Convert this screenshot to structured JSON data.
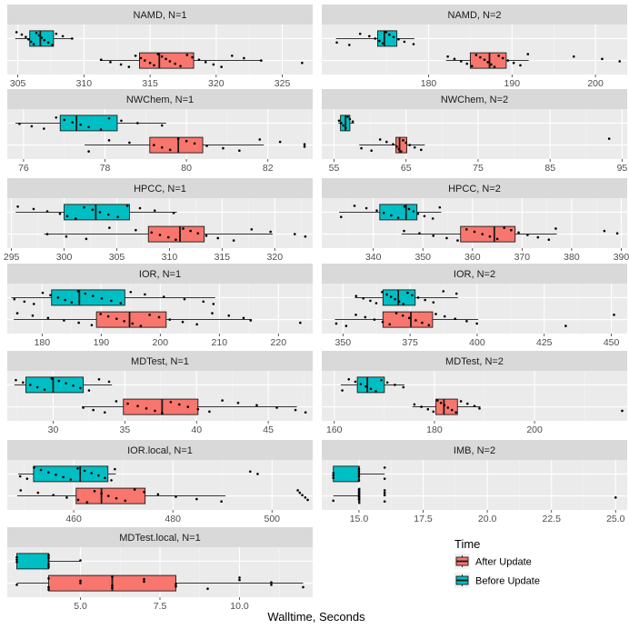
{
  "chart_data": {
    "type": "boxplot",
    "xlabel": "Walltime, Seconds",
    "legend": {
      "title": "Time",
      "placement": "right-bottom",
      "entries": [
        {
          "label": "After Update",
          "color": "#F8766D"
        },
        {
          "label": "Before Update",
          "color": "#00BFC4"
        }
      ]
    },
    "panels": [
      {
        "title": "NAMD, N=1",
        "xlim": [
          304.2,
          327.3
        ],
        "ticks": [
          305,
          310,
          315,
          320,
          325
        ],
        "tick_labels": [
          "305",
          "310",
          "315",
          "320",
          "325"
        ],
        "series": [
          {
            "group": "Before Update",
            "whisker_low": 304.8,
            "q1": 305.9,
            "median": 306.7,
            "q3": 307.7,
            "whisker_high": 309.2,
            "points": [
              304.9,
              305.3,
              305.6,
              305.8,
              306.0,
              306.2,
              306.4,
              306.6,
              306.8,
              307.0,
              307.3,
              307.6,
              307.9,
              308.4,
              309.1
            ]
          },
          {
            "group": "After Update",
            "whisker_low": 311.2,
            "q1": 314.2,
            "median": 315.7,
            "q3": 318.3,
            "whisker_high": 323.5,
            "points": [
              311.3,
              312.0,
              312.8,
              313.4,
              313.9,
              314.3,
              314.6,
              315.0,
              315.3,
              315.6,
              315.9,
              316.2,
              316.5,
              316.9,
              317.3,
              317.8,
              318.2,
              318.7,
              319.2,
              319.8,
              320.4,
              321.2,
              322.1,
              323.4,
              326.5
            ]
          }
        ]
      },
      {
        "title": "NAMD, N=2",
        "xlim": [
          167.2,
          203.8
        ],
        "ticks": [
          180,
          190,
          200
        ],
        "tick_labels": [
          "180",
          "190",
          "200"
        ],
        "series": [
          {
            "group": "Before Update",
            "whisker_low": 168.9,
            "q1": 173.9,
            "median": 174.7,
            "q3": 176.2,
            "whisker_high": 178.3,
            "points": [
              169.0,
              170.5,
              171.8,
              172.9,
              173.6,
              174.1,
              174.5,
              174.9,
              175.3,
              175.8,
              176.4,
              177.1,
              178.2
            ]
          },
          {
            "group": "After Update",
            "whisker_low": 182.1,
            "q1": 185.0,
            "median": 187.3,
            "q3": 189.3,
            "whisker_high": 192.0,
            "points": [
              182.3,
              183.1,
              183.9,
              184.6,
              185.2,
              185.7,
              186.2,
              186.7,
              187.1,
              187.5,
              187.9,
              188.4,
              188.9,
              189.5,
              190.2,
              191.0,
              191.9,
              197.4,
              200.8,
              202.9
            ]
          }
        ]
      },
      {
        "title": "NWChem, N=1",
        "xlim": [
          75.6,
          83.1
        ],
        "ticks": [
          76,
          78,
          80,
          82
        ],
        "tick_labels": [
          "76",
          "78",
          "80",
          "82"
        ],
        "series": [
          {
            "group": "Before Update",
            "whisker_low": 75.8,
            "q1": 76.9,
            "median": 77.3,
            "q3": 78.3,
            "whisker_high": 79.5,
            "points": [
              75.9,
              76.2,
              76.5,
              76.8,
              77.0,
              77.2,
              77.4,
              77.6,
              77.9,
              78.1,
              78.4,
              78.8,
              79.4
            ]
          },
          {
            "group": "After Update",
            "whisker_low": 77.5,
            "q1": 79.1,
            "median": 79.8,
            "q3": 80.4,
            "whisker_high": 81.9,
            "points": [
              77.6,
              78.1,
              78.6,
              79.2,
              79.4,
              79.6,
              79.8,
              80.0,
              80.2,
              80.5,
              80.9,
              81.3,
              81.8,
              82.3,
              82.9,
              82.9
            ]
          }
        ]
      },
      {
        "title": "NWChem, N=2",
        "xlim": [
          53.3,
          95.7
        ],
        "ticks": [
          55,
          65,
          75,
          85,
          95
        ],
        "tick_labels": [
          "55",
          "65",
          "75",
          "85",
          "95"
        ],
        "series": [
          {
            "group": "Before Update",
            "whisker_low": 55.6,
            "q1": 55.9,
            "median": 56.6,
            "q3": 57.2,
            "whisker_high": 57.8,
            "points": [
              55.7,
              56.0,
              56.3,
              56.6,
              56.9,
              57.2,
              57.6
            ]
          },
          {
            "group": "After Update",
            "whisker_low": 58.5,
            "q1": 63.6,
            "median": 64.1,
            "q3": 65.1,
            "whisker_high": 67.6,
            "points": [
              58.8,
              60.2,
              61.4,
              62.3,
              63.2,
              63.7,
              64.0,
              64.3,
              64.6,
              65.0,
              65.5,
              66.2,
              67.1,
              93.2
            ]
          }
        ]
      },
      {
        "title": "HPCC, N=1",
        "xlim": [
          294.6,
          323.6
        ],
        "ticks": [
          295,
          300,
          305,
          310,
          315,
          320
        ],
        "tick_labels": [
          "295",
          "300",
          "305",
          "310",
          "315",
          "320"
        ],
        "series": [
          {
            "group": "Before Update",
            "whisker_low": 295.4,
            "q1": 300.0,
            "median": 303.0,
            "q3": 306.2,
            "whisker_high": 310.7,
            "points": [
              295.6,
              297.1,
              298.4,
              299.6,
              300.3,
              301.1,
              301.9,
              302.7,
              303.4,
              304.2,
              305.1,
              306.0,
              307.2,
              308.6,
              310.4
            ]
          },
          {
            "group": "After Update",
            "whisker_low": 298.1,
            "q1": 308.0,
            "median": 311.0,
            "q3": 313.3,
            "whisker_high": 319.8,
            "points": [
              298.4,
              300.2,
              302.1,
              304.3,
              306.8,
              308.3,
              309.1,
              309.9,
              310.6,
              311.3,
              312.0,
              312.7,
              313.5,
              314.6,
              316.1,
              317.8,
              319.6,
              321.9,
              322.9
            ]
          }
        ]
      },
      {
        "title": "HPCC, N=2",
        "xlim": [
          329.6,
          391.2
        ],
        "ticks": [
          340,
          350,
          360,
          370,
          380,
          390
        ],
        "tick_labels": [
          "340",
          "350",
          "360",
          "370",
          "380",
          "390"
        ],
        "series": [
          {
            "group": "Before Update",
            "whisker_low": 333.1,
            "q1": 341.3,
            "median": 346.6,
            "q3": 348.8,
            "whisker_high": 353.7,
            "points": [
              333.5,
              336.2,
              338.6,
              340.7,
              342.1,
              343.6,
              345.0,
              346.3,
              347.2,
              348.1,
              349.0,
              350.3,
              352.0,
              353.4
            ]
          },
          {
            "group": "After Update",
            "whisker_low": 345.7,
            "q1": 357.6,
            "median": 364.4,
            "q3": 368.6,
            "whisker_high": 377.0,
            "points": [
              346.2,
              349.3,
              352.1,
              354.8,
              357.0,
              358.8,
              360.4,
              362.0,
              363.5,
              365.0,
              366.4,
              367.8,
              369.3,
              371.1,
              373.2,
              375.4,
              376.8,
              386.6,
              389.2
            ]
          }
        ]
      },
      {
        "title": "IOR, N=1",
        "xlim": [
          174.1,
          225.8
        ],
        "ticks": [
          180,
          190,
          200,
          210,
          220
        ],
        "tick_labels": [
          "180",
          "190",
          "200",
          "210",
          "220"
        ],
        "series": [
          {
            "group": "Before Update",
            "whisker_low": 174.8,
            "q1": 181.6,
            "median": 186.3,
            "q3": 194.0,
            "whisker_high": 209.3,
            "points": [
              175.3,
              177.0,
              178.6,
              180.1,
              181.4,
              182.7,
              183.9,
              185.0,
              186.1,
              187.3,
              188.6,
              190.1,
              191.7,
              193.3,
              195.0,
              197.4,
              200.6,
              204.1,
              207.3,
              209.0
            ]
          },
          {
            "group": "After Update",
            "whisker_low": 175.2,
            "q1": 189.2,
            "median": 194.8,
            "q3": 201.0,
            "whisker_high": 215.5,
            "points": [
              175.8,
              178.4,
              181.0,
              183.7,
              186.2,
              188.4,
              189.9,
              191.2,
              192.6,
              193.9,
              195.3,
              196.7,
              198.2,
              199.8,
              201.6,
              203.8,
              206.2,
              208.8,
              211.6,
              214.1,
              215.3,
              223.7
            ]
          }
        ]
      },
      {
        "title": "IOR, N=2",
        "xlim": [
          342.1,
          455.9
        ],
        "ticks": [
          350,
          375,
          400,
          425,
          450
        ],
        "tick_labels": [
          "350",
          "375",
          "400",
          "425",
          "450"
        ],
        "series": [
          {
            "group": "Before Update",
            "whisker_low": 354.4,
            "q1": 364.9,
            "median": 370.6,
            "q3": 376.9,
            "whisker_high": 392.8,
            "points": [
              354.9,
              357.6,
              360.2,
              362.4,
              364.6,
              366.3,
              367.9,
              369.4,
              370.9,
              372.5,
              374.1,
              375.8,
              378.0,
              380.6,
              383.7,
              387.4,
              392.3
            ]
          },
          {
            "group": "After Update",
            "whisker_low": 347.0,
            "q1": 364.9,
            "median": 375.3,
            "q3": 383.4,
            "whisker_high": 400.4,
            "points": [
              347.5,
              351.2,
              354.8,
              358.3,
              361.7,
              364.8,
              367.4,
              369.9,
              372.3,
              374.7,
              377.1,
              379.5,
              382.0,
              384.6,
              387.9,
              391.8,
              396.1,
              399.9,
              433.0,
              451.0
            ]
          }
        ]
      },
      {
        "title": "MDTest, N=1",
        "xlim": [
          26.8,
          48.1
        ],
        "ticks": [
          30,
          35,
          40,
          45
        ],
        "tick_labels": [
          "30",
          "35",
          "40",
          "45"
        ],
        "series": [
          {
            "group": "Before Update",
            "whisker_low": 27.3,
            "q1": 28.1,
            "median": 30.0,
            "q3": 32.1,
            "whisker_high": 34.1,
            "points": [
              27.4,
              27.9,
              28.4,
              28.9,
              29.4,
              29.9,
              30.4,
              30.9,
              31.4,
              31.9,
              32.5,
              33.2,
              33.9
            ]
          },
          {
            "group": "After Update",
            "whisker_low": 32.0,
            "q1": 34.9,
            "median": 37.6,
            "q3": 40.1,
            "whisker_high": 47.0,
            "points": [
              32.1,
              32.8,
              33.6,
              34.4,
              35.2,
              35.9,
              36.5,
              37.1,
              37.6,
              38.2,
              38.8,
              39.4,
              40.1,
              40.9,
              41.8,
              42.9,
              44.2,
              45.6,
              46.9,
              47.6
            ]
          }
        ]
      },
      {
        "title": "MDTest, N=2",
        "xlim": [
          157.5,
          218.5
        ],
        "ticks": [
          160,
          180,
          200
        ],
        "tick_labels": [
          "160",
          "180",
          "200"
        ],
        "series": [
          {
            "group": "Before Update",
            "whisker_low": 161.3,
            "q1": 164.6,
            "median": 166.6,
            "q3": 170.0,
            "whisker_high": 174.0,
            "points": [
              161.6,
              162.9,
              164.2,
              165.3,
              166.3,
              167.3,
              168.3,
              169.4,
              170.6,
              172.1,
              173.8
            ]
          },
          {
            "group": "After Update",
            "whisker_low": 175.6,
            "q1": 180.3,
            "median": 181.9,
            "q3": 184.6,
            "whisker_high": 189.2,
            "points": [
              176.0,
              177.4,
              178.7,
              179.8,
              180.6,
              181.3,
              182.0,
              182.7,
              183.5,
              184.3,
              185.3,
              186.6,
              188.0,
              189.0,
              217.5
            ]
          }
        ]
      },
      {
        "title": "IOR.local, N=1",
        "xlim": [
          446.6,
          508.2
        ],
        "ticks": [
          460,
          480,
          500
        ],
        "tick_labels": [
          "460",
          "480",
          "500"
        ],
        "series": [
          {
            "group": "Before Update",
            "whisker_low": 448.8,
            "q1": 451.9,
            "median": 461.3,
            "q3": 466.9,
            "whisker_high": 468.5,
            "points": [
              449.2,
              450.6,
              452.0,
              453.4,
              454.9,
              456.4,
              457.9,
              459.4,
              460.8,
              462.2,
              463.6,
              465.0,
              466.3,
              467.6,
              468.3,
              495.6,
              497.1
            ]
          },
          {
            "group": "After Update",
            "whisker_low": 448.6,
            "q1": 460.5,
            "median": 465.6,
            "q3": 474.4,
            "whisker_high": 490.6,
            "points": [
              449.3,
              452.8,
              455.9,
              458.6,
              460.9,
              462.7,
              464.2,
              465.6,
              467.0,
              468.6,
              470.4,
              472.3,
              474.2,
              477.0,
              480.6,
              484.8,
              489.8,
              505.2,
              505.6,
              506.1,
              506.7,
              507.2
            ]
          }
        ]
      },
      {
        "title": "IMB, N=2",
        "xlim": [
          13.55,
          25.45
        ],
        "ticks": [
          15.0,
          17.5,
          20.0,
          22.5,
          25.0
        ],
        "tick_labels": [
          "15.0",
          "17.5",
          "20.0",
          "22.5",
          "25.0"
        ],
        "series": [
          {
            "group": "Before Update",
            "whisker_low": 14.0,
            "q1": 14.0,
            "median": 15.0,
            "q3": 15.0,
            "whisker_high": 16.0,
            "points": [
              14.0,
              14.0,
              14.0,
              15.0,
              15.0,
              15.0,
              15.0,
              15.0,
              16.0,
              16.0
            ]
          },
          {
            "group": "After Update",
            "whisker_low": 14.0,
            "q1": 15.0,
            "median": 15.0,
            "q3": 15.0,
            "whisker_high": 15.0,
            "points": [
              14.0,
              15.0,
              15.0,
              15.0,
              15.0,
              15.0,
              16.0,
              16.0,
              16.0,
              16.0,
              25.0
            ]
          }
        ]
      },
      {
        "title": "MDTest.local, N=1",
        "xlim": [
          2.7,
          12.3
        ],
        "ticks": [
          5.0,
          7.5,
          10.0
        ],
        "tick_labels": [
          "5.0",
          "7.5",
          "10.0"
        ],
        "series": [
          {
            "group": "Before Update",
            "whisker_low": 3.0,
            "q1": 3.0,
            "median": 4.0,
            "q3": 4.0,
            "whisker_high": 5.0,
            "points": [
              3.0,
              3.0,
              3.0,
              4.0,
              4.0,
              4.0,
              4.0,
              5.0
            ]
          },
          {
            "group": "After Update",
            "whisker_low": 3.0,
            "q1": 4.0,
            "median": 6.0,
            "q3": 8.0,
            "whisker_high": 12.0,
            "points": [
              3.0,
              4.0,
              4.0,
              4.0,
              5.0,
              5.0,
              6.0,
              6.0,
              6.0,
              7.0,
              7.0,
              8.0,
              8.0,
              9.0,
              10.0,
              10.0,
              11.0,
              11.0,
              12.0
            ]
          }
        ]
      }
    ]
  }
}
